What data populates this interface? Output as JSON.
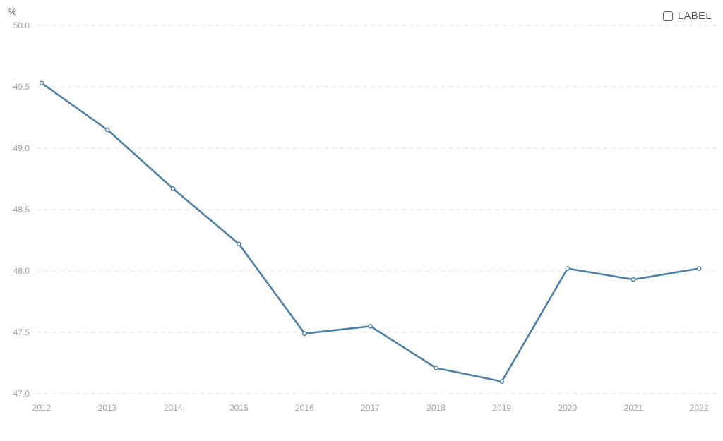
{
  "chart_data": {
    "type": "line",
    "title": "",
    "xlabel": "",
    "ylabel": "",
    "y_unit": "%",
    "x": [
      "2012",
      "2013",
      "2014",
      "2015",
      "2016",
      "2017",
      "2018",
      "2019",
      "2020",
      "2021",
      "2022"
    ],
    "series": [
      {
        "values": [
          49.53,
          49.15,
          48.67,
          48.22,
          47.49,
          47.55,
          47.21,
          47.1,
          48.02,
          47.93,
          48.02
        ],
        "color": "#4f81a8"
      }
    ],
    "ylim": [
      47.0,
      50.0
    ],
    "y_ticks": [
      "47.0",
      "47.5",
      "48.0",
      "48.5",
      "49.0",
      "49.5",
      "50.0"
    ],
    "grid": true,
    "legend": "none"
  },
  "controls": {
    "label_toggle": {
      "text": "LABEL",
      "checked": false
    }
  }
}
